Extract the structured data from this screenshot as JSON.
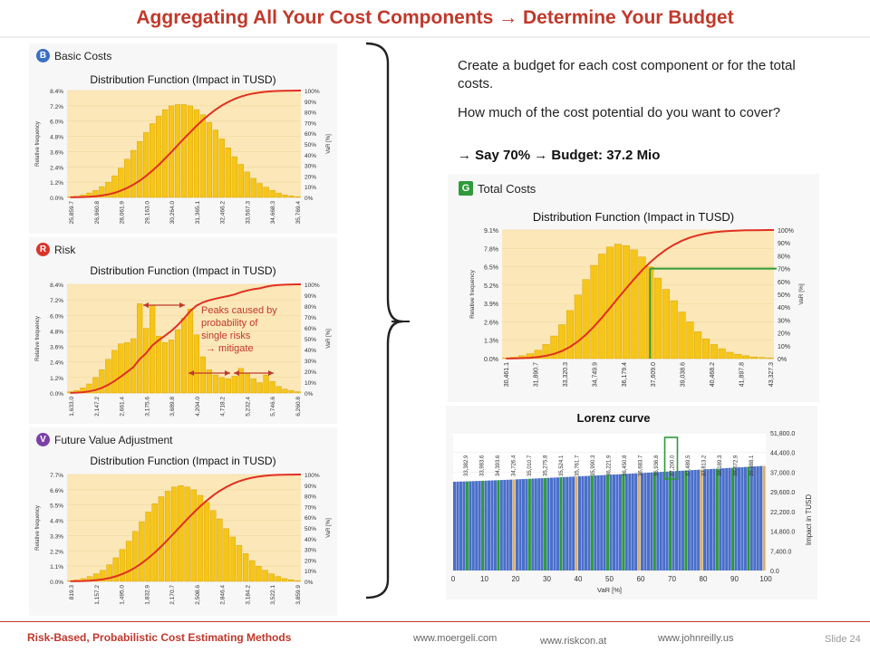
{
  "title": "Aggregating All Your Cost Components → Determine Your Budget",
  "panels": {
    "basic": {
      "badge": "B",
      "label": "Basic Costs",
      "chart_title": "Distribution Function (Impact in TUSD)"
    },
    "risk": {
      "badge": "R",
      "label": "Risk",
      "chart_title": "Distribution Function (Impact in TUSD)"
    },
    "fva": {
      "badge": "V",
      "label": "Future Value Adjustment",
      "chart_title": "Distribution Function (Impact in TUSD)"
    },
    "total": {
      "badge": "G",
      "label": "Total Costs",
      "chart_title": "Distribution Function (Impact in TUSD)"
    },
    "lorenz": {
      "chart_title": "Lorenz curve"
    }
  },
  "annotation": {
    "line1": "Peaks caused by",
    "line2": "probability of",
    "line3": "single risks",
    "line4": "→ mitigate"
  },
  "right_text": {
    "p1": "Create a budget for each cost component or for the total costs.",
    "p2": "How much of the cost potential do you want to cover?",
    "p3": "→ Say 70% → Budget: 37.2 Mio"
  },
  "footer": {
    "left": "Risk-Based, Probabilistic Cost Estimating Methods",
    "link1": "www.moergeli.com",
    "link2": "www.riskcon.at",
    "link3": "www.johnreilly.us",
    "slide": "Slide 24"
  },
  "colors": {
    "accent": "#c0392b",
    "bar": "#f5c518",
    "bar_edge": "#d49a00",
    "curve": "#e03020",
    "lorenz_bar": "#4a6fc9",
    "lorenz_green": "#2e9a3a",
    "lorenz_tan": "#d8b070"
  },
  "chart_data": [
    {
      "type": "bar",
      "id": "basic",
      "title": "Distribution Function (Impact in TUSD)",
      "ylabel": "Relative frequency",
      "y2label": "VaR [%]",
      "yticks": [
        "0.0%",
        "1.2%",
        "2.4%",
        "3.6%",
        "4.8%",
        "6.0%",
        "7.2%",
        "8.4%"
      ],
      "y2ticks": [
        "0%",
        "10%",
        "20%",
        "30%",
        "40%",
        "50%",
        "60%",
        "70%",
        "80%",
        "90%",
        "100%"
      ],
      "xticks": [
        "25,859.7",
        "26,960.8",
        "28,061.9",
        "29,163.0",
        "30,264.0",
        "31,365.1",
        "32,466.2",
        "33,567.3",
        "34,668.3",
        "35,769.4"
      ],
      "ylim": [
        0,
        8.4
      ],
      "values": [
        0.05,
        0.1,
        0.2,
        0.35,
        0.55,
        0.85,
        1.2,
        1.7,
        2.3,
        3.0,
        3.7,
        4.4,
        5.1,
        5.8,
        6.4,
        6.9,
        7.2,
        7.3,
        7.3,
        7.2,
        6.9,
        6.5,
        5.9,
        5.3,
        4.6,
        3.9,
        3.2,
        2.6,
        2.0,
        1.5,
        1.1,
        0.8,
        0.55,
        0.35,
        0.2,
        0.12,
        0.06
      ]
    },
    {
      "type": "bar",
      "id": "risk",
      "title": "Distribution Function (Impact in TUSD)",
      "ylabel": "Relative frequency",
      "y2label": "VaR [%]",
      "yticks": [
        "0.0%",
        "1.2%",
        "2.4%",
        "3.6%",
        "4.8%",
        "6.0%",
        "7.2%",
        "8.4%"
      ],
      "y2ticks": [
        "0%",
        "10%",
        "20%",
        "30%",
        "40%",
        "50%",
        "60%",
        "70%",
        "80%",
        "90%",
        "100%"
      ],
      "xticks": [
        "1,633.0",
        "2,147.2",
        "2,661.4",
        "3,175.6",
        "3,689.8",
        "4,204.0",
        "4,718.2",
        "5,232.4",
        "5,746.6",
        "6,260.8"
      ],
      "ylim": [
        0,
        8.4
      ],
      "values": [
        0.1,
        0.2,
        0.4,
        0.7,
        1.2,
        1.8,
        2.6,
        3.3,
        3.8,
        3.9,
        4.2,
        6.9,
        5.0,
        6.8,
        4.4,
        3.9,
        4.1,
        4.9,
        5.8,
        6.5,
        4.5,
        2.8,
        1.8,
        1.4,
        1.2,
        1.1,
        1.3,
        1.9,
        1.5,
        1.1,
        0.8,
        1.4,
        0.9,
        0.5,
        0.3,
        0.2,
        0.1
      ]
    },
    {
      "type": "bar",
      "id": "fva",
      "title": "Distribution Function (Impact in TUSD)",
      "ylabel": "Relative frequency",
      "y2label": "VaR [%]",
      "yticks": [
        "0.0%",
        "1.1%",
        "2.2%",
        "3.3%",
        "4.4%",
        "5.5%",
        "6.6%",
        "7.7%"
      ],
      "y2ticks": [
        "0%",
        "10%",
        "20%",
        "30%",
        "40%",
        "50%",
        "60%",
        "70%",
        "80%",
        "90%",
        "100%"
      ],
      "xticks": [
        "819.3",
        "1,157.2",
        "1,495.0",
        "1,832.9",
        "2,170.7",
        "2,508.6",
        "2,846.4",
        "3,184.2",
        "3,522.1",
        "3,859.9"
      ],
      "ylim": [
        0,
        7.7
      ],
      "values": [
        0.05,
        0.1,
        0.2,
        0.35,
        0.55,
        0.8,
        1.2,
        1.7,
        2.3,
        2.9,
        3.6,
        4.3,
        5.0,
        5.6,
        6.1,
        6.5,
        6.8,
        6.9,
        6.8,
        6.6,
        6.2,
        5.7,
        5.1,
        4.5,
        3.8,
        3.2,
        2.6,
        2.0,
        1.5,
        1.1,
        0.8,
        0.55,
        0.35,
        0.2,
        0.12,
        0.06
      ]
    },
    {
      "type": "bar",
      "id": "total",
      "title": "Distribution Function (Impact in TUSD)",
      "ylabel": "Relative frequency",
      "y2label": "VaR [%]",
      "yticks": [
        "0.0%",
        "1.3%",
        "2.6%",
        "3.9%",
        "5.2%",
        "6.5%",
        "7.8%",
        "9.1%"
      ],
      "y2ticks": [
        "0%",
        "10%",
        "20%",
        "30%",
        "40%",
        "50%",
        "60%",
        "70%",
        "80%",
        "90%",
        "100%"
      ],
      "xticks": [
        "30,461.1",
        "31,890.7",
        "33,320.3",
        "34,749.9",
        "36,179.4",
        "37,609.0",
        "39,038.6",
        "40,468.2",
        "41,897.8",
        "43,327.3"
      ],
      "ylim": [
        0,
        9.1
      ],
      "budget_var": 70,
      "values": [
        0.05,
        0.1,
        0.2,
        0.35,
        0.6,
        1.0,
        1.6,
        2.4,
        3.4,
        4.5,
        5.6,
        6.6,
        7.4,
        7.9,
        8.1,
        8.0,
        7.7,
        7.2,
        6.5,
        5.7,
        4.9,
        4.1,
        3.3,
        2.6,
        1.9,
        1.4,
        1.0,
        0.7,
        0.45,
        0.3,
        0.2,
        0.12,
        0.08,
        0.05
      ]
    },
    {
      "type": "bar",
      "id": "lorenz",
      "title": "Lorenz curve",
      "xlabel": "VaR [%]",
      "ylabel": "Impact in TUSD",
      "xticks": [
        "0",
        "10",
        "20",
        "30",
        "40",
        "50",
        "60",
        "70",
        "80",
        "90",
        "100"
      ],
      "yticks": [
        "0.0",
        "7,400.0",
        "14,800.0",
        "22,200.0",
        "29,600.0",
        "37,000.0",
        "44,400.0",
        "51,800.0"
      ],
      "ylim": [
        0,
        51800
      ],
      "start_value": 33382.9,
      "end_value": 39388.1,
      "top_labels": [
        "33,382.9",
        "33,983.6",
        "34,393.6",
        "34,726.4",
        "35,010.7",
        "35,275.8",
        "35,524.1",
        "35,761.7",
        "35,990.3",
        "36,221.9",
        "36,450.8",
        "36,683.7",
        "36,936.8",
        "37,200.0",
        "37,489.5",
        "37,813.2",
        "38,189.3",
        "38,672.9",
        "39,388.1"
      ],
      "highlight_var": 70
    }
  ]
}
